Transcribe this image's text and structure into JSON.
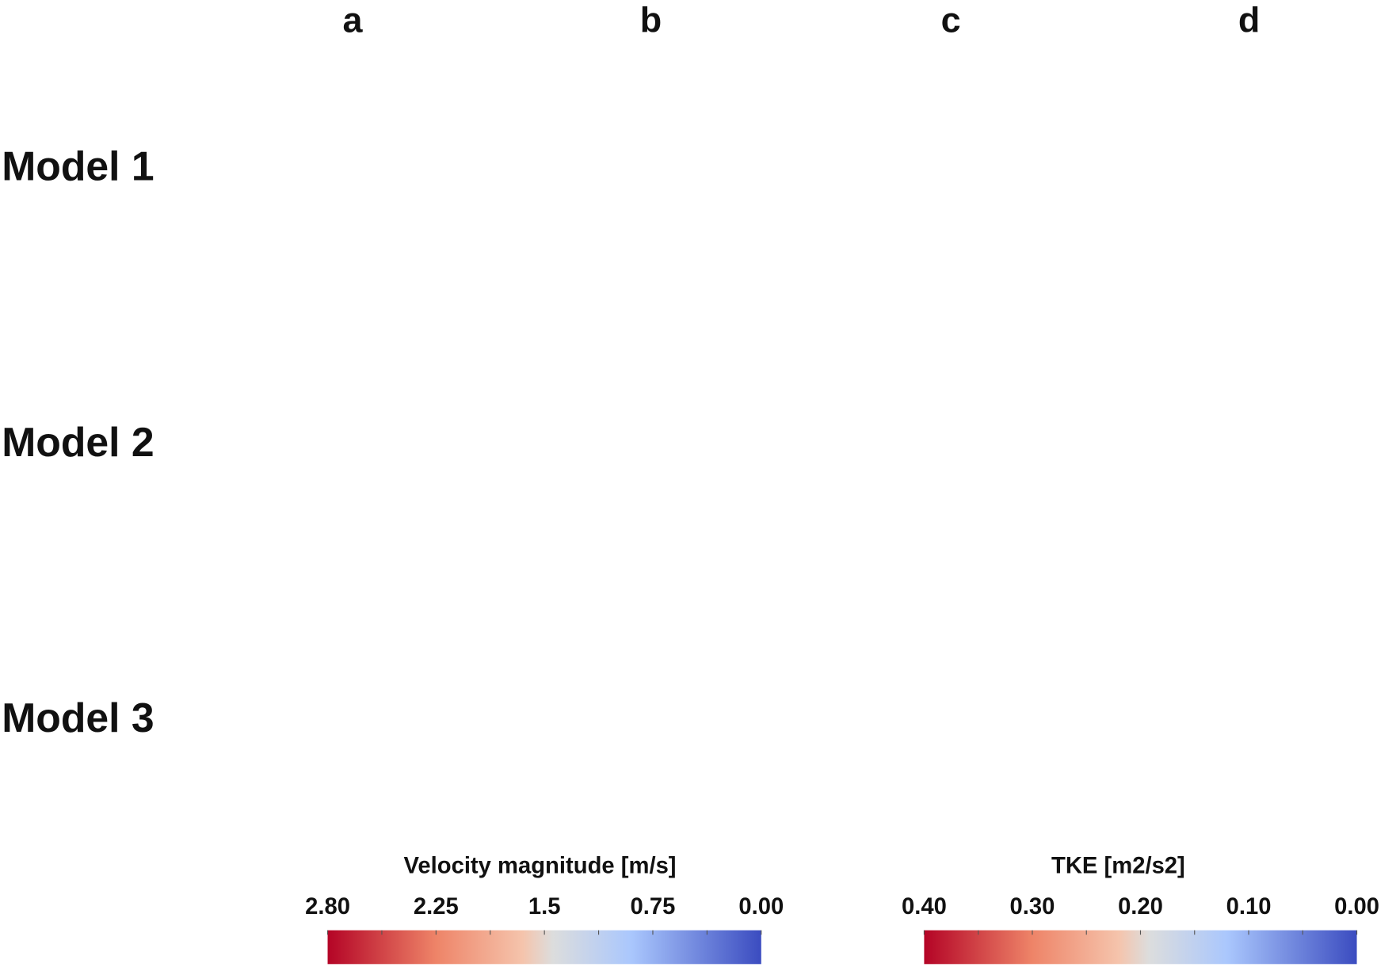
{
  "columns": [
    "a",
    "b",
    "c",
    "d"
  ],
  "rows": [
    "Model 1",
    "Model 2",
    "Model 3"
  ],
  "colorbars": [
    {
      "title": "Velocity magnitude [m/s]",
      "ticks": [
        "2.80",
        "2.25",
        "1.5",
        "0.75",
        "0.00"
      ]
    },
    {
      "title": "TKE [m2/s2]",
      "ticks": [
        "0.40",
        "0.30",
        "0.20",
        "0.10",
        "0.00"
      ]
    }
  ]
}
